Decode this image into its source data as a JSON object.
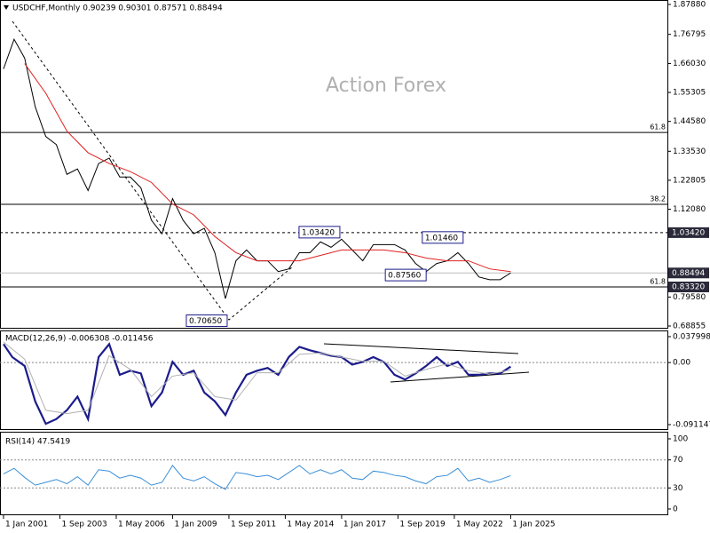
{
  "chart_data": [
    {
      "type": "line",
      "title": "USDCHF,Monthly  0.90239 0.90301 0.87571 0.88494",
      "watermark": "Action Forex",
      "xlim": [
        "2000-11",
        "2032-06"
      ],
      "xticks": [
        {
          "value": "2001-01",
          "label": "1 Jan 2001"
        },
        {
          "value": "2003-09",
          "label": "1 Sep 2003"
        },
        {
          "value": "2006-05",
          "label": "1 May 2006"
        },
        {
          "value": "2009-01",
          "label": "1 Jan 2009"
        },
        {
          "value": "2011-09",
          "label": "1 Sep 2011"
        },
        {
          "value": "2014-05",
          "label": "1 May 2014"
        },
        {
          "value": "2017-01",
          "label": "1 Jan 2017"
        },
        {
          "value": "2019-09",
          "label": "1 Sep 2019"
        },
        {
          "value": "2022-05",
          "label": "1 May 2022"
        },
        {
          "value": "2025-01",
          "label": "1 Jan 2025"
        }
      ],
      "ylim": [
        0.6787,
        1.8952
      ],
      "yticks": [
        {
          "value": 1.8788,
          "label": "1.87880"
        },
        {
          "value": 1.76795,
          "label": "1.76795"
        },
        {
          "value": 1.6603,
          "label": "1.66030"
        },
        {
          "value": 1.55305,
          "label": "1.55305"
        },
        {
          "value": 1.4458,
          "label": "1.44580"
        },
        {
          "value": 1.3353,
          "label": "1.33530"
        },
        {
          "value": 1.22805,
          "label": "1.22805"
        },
        {
          "value": 1.1208,
          "label": "1.12080"
        },
        {
          "value": 0.7958,
          "label": "0.79580"
        },
        {
          "value": 0.68855,
          "label": "0.68855"
        }
      ],
      "series": [
        {
          "name": "USDCHF",
          "color": "#000000",
          "x": [
            "2001-01",
            "2001-07",
            "2002-01",
            "2002-07",
            "2003-01",
            "2003-07",
            "2004-01",
            "2004-07",
            "2005-01",
            "2005-07",
            "2006-01",
            "2006-07",
            "2007-01",
            "2007-07",
            "2008-01",
            "2008-07",
            "2009-01",
            "2009-07",
            "2010-01",
            "2010-07",
            "2011-01",
            "2011-07",
            "2012-01",
            "2012-07",
            "2013-01",
            "2013-07",
            "2014-01",
            "2014-07",
            "2015-01",
            "2015-07",
            "2016-01",
            "2016-07",
            "2017-01",
            "2017-07",
            "2018-01",
            "2018-07",
            "2019-01",
            "2019-07",
            "2020-01",
            "2020-07",
            "2021-01",
            "2021-07",
            "2022-01",
            "2022-07",
            "2023-01",
            "2023-07",
            "2024-01",
            "2024-07",
            "2025-01"
          ],
          "values": [
            1.64,
            1.75,
            1.68,
            1.5,
            1.39,
            1.36,
            1.25,
            1.27,
            1.19,
            1.29,
            1.31,
            1.24,
            1.24,
            1.2,
            1.08,
            1.03,
            1.16,
            1.08,
            1.03,
            1.05,
            0.96,
            0.79,
            0.93,
            0.97,
            0.93,
            0.93,
            0.89,
            0.9,
            0.96,
            0.96,
            1.0,
            0.98,
            1.01,
            0.97,
            0.93,
            0.99,
            0.99,
            0.99,
            0.97,
            0.92,
            0.89,
            0.92,
            0.93,
            0.96,
            0.92,
            0.87,
            0.86,
            0.86,
            0.885
          ]
        },
        {
          "name": "MA",
          "color": "#e02020",
          "x": [
            "2002-01",
            "2003-01",
            "2004-01",
            "2005-01",
            "2006-01",
            "2007-01",
            "2008-01",
            "2009-01",
            "2010-01",
            "2011-01",
            "2012-01",
            "2013-01",
            "2014-01",
            "2015-01",
            "2016-01",
            "2017-01",
            "2018-01",
            "2019-01",
            "2020-01",
            "2021-01",
            "2022-01",
            "2023-01",
            "2024-01",
            "2025-01"
          ],
          "values": [
            1.66,
            1.55,
            1.41,
            1.33,
            1.29,
            1.26,
            1.22,
            1.14,
            1.1,
            1.02,
            0.96,
            0.93,
            0.93,
            0.93,
            0.95,
            0.97,
            0.97,
            0.97,
            0.96,
            0.94,
            0.93,
            0.93,
            0.9,
            0.89
          ]
        }
      ],
      "levels": [
        {
          "value": 1.4048,
          "label": "61.8",
          "style": "solid"
        },
        {
          "value": 1.139,
          "label": "38.2",
          "style": "solid"
        },
        {
          "value": 1.0342,
          "style": "dashed"
        },
        {
          "value": 0.8332,
          "label": "61.8",
          "style": "solid"
        },
        {
          "value": 0.88494,
          "style": "faint"
        }
      ],
      "price_tags": [
        {
          "value": 1.0342,
          "label": "1.03420"
        },
        {
          "value": 0.88494,
          "label": "0.88494"
        },
        {
          "value": 0.8332,
          "label": "0.83320"
        }
      ],
      "annotations": [
        {
          "x": "2016-12",
          "value": 1.0342,
          "label": "1.03420"
        },
        {
          "x": "2011-08",
          "value": 0.7065,
          "label": "0.70650"
        },
        {
          "x": "2021-01",
          "value": 0.8756,
          "label": "0.87560"
        },
        {
          "x": "2022-10",
          "value": 1.0146,
          "label": "1.01460"
        }
      ]
    },
    {
      "type": "line",
      "title": "MACD(12,26,9) -0.006308 -0.011456",
      "ylim": [
        -0.0977,
        0.0471
      ],
      "yticks": [
        {
          "value": 0.037998,
          "label": "0.037998"
        },
        {
          "value": 0,
          "label": "0.00"
        },
        {
          "value": -0.091147,
          "label": "-0.091147"
        }
      ],
      "levels": [
        {
          "value": 0,
          "style": "dotted"
        }
      ],
      "series": [
        {
          "name": "MACD",
          "color": "#1c1c8c",
          "x": [
            "2001-01",
            "2001-06",
            "2002-01",
            "2002-07",
            "2003-01",
            "2003-07",
            "2004-01",
            "2004-07",
            "2005-01",
            "2005-07",
            "2006-01",
            "2006-07",
            "2007-01",
            "2007-07",
            "2008-01",
            "2008-07",
            "2009-01",
            "2009-07",
            "2010-01",
            "2010-07",
            "2011-01",
            "2011-07",
            "2012-01",
            "2012-07",
            "2013-01",
            "2013-07",
            "2014-01",
            "2014-07",
            "2015-01",
            "2015-07",
            "2016-01",
            "2016-07",
            "2017-01",
            "2017-07",
            "2018-01",
            "2018-07",
            "2019-01",
            "2019-07",
            "2020-01",
            "2020-07",
            "2021-01",
            "2021-07",
            "2022-01",
            "2022-07",
            "2023-01",
            "2023-07",
            "2024-01",
            "2024-07",
            "2025-01"
          ],
          "values": [
            0.027,
            0.008,
            -0.005,
            -0.057,
            -0.09,
            -0.083,
            -0.07,
            -0.05,
            -0.083,
            0.008,
            0.027,
            -0.018,
            -0.012,
            -0.016,
            -0.064,
            -0.044,
            0.001,
            -0.018,
            -0.012,
            -0.044,
            -0.057,
            -0.077,
            -0.044,
            -0.018,
            -0.012,
            -0.008,
            -0.018,
            0.008,
            0.023,
            0.018,
            0.014,
            0.01,
            0.008,
            -0.003,
            0.001,
            0.008,
            0.001,
            -0.018,
            -0.025,
            -0.016,
            -0.005,
            0.008,
            -0.005,
            0.001,
            -0.018,
            -0.018,
            -0.016,
            -0.016,
            -0.006
          ]
        },
        {
          "name": "Signal",
          "color": "#b0b0b0",
          "x": [
            "2001-01",
            "2002-01",
            "2003-01",
            "2004-01",
            "2005-01",
            "2006-01",
            "2007-01",
            "2008-01",
            "2009-01",
            "2010-01",
            "2011-01",
            "2012-01",
            "2013-01",
            "2014-01",
            "2015-01",
            "2016-01",
            "2017-01",
            "2018-01",
            "2019-01",
            "2020-01",
            "2021-01",
            "2022-01",
            "2023-01",
            "2024-01",
            "2025-01"
          ],
          "values": [
            0.03,
            0.005,
            -0.07,
            -0.075,
            -0.07,
            0.01,
            -0.01,
            -0.05,
            -0.02,
            -0.015,
            -0.05,
            -0.055,
            -0.015,
            -0.015,
            0.012,
            0.014,
            0.008,
            0.002,
            0.002,
            -0.02,
            -0.01,
            -0.002,
            -0.012,
            -0.017,
            -0.011
          ]
        }
      ]
    },
    {
      "type": "line",
      "title": "RSI(14) 47.5419",
      "ylim": [
        -8.9,
        107.6
      ],
      "yticks": [
        100,
        70,
        30,
        0
      ],
      "levels": [
        {
          "value": 70,
          "style": "dotted"
        },
        {
          "value": 30,
          "style": "dotted"
        }
      ],
      "series": [
        {
          "name": "RSI",
          "color": "#3a8fd8",
          "x": [
            "2001-01",
            "2001-07",
            "2002-01",
            "2002-07",
            "2003-01",
            "2003-07",
            "2004-01",
            "2004-07",
            "2005-01",
            "2005-07",
            "2006-01",
            "2006-07",
            "2007-01",
            "2007-07",
            "2008-01",
            "2008-07",
            "2009-01",
            "2009-07",
            "2010-01",
            "2010-07",
            "2011-01",
            "2011-07",
            "2012-01",
            "2012-07",
            "2013-01",
            "2013-07",
            "2014-01",
            "2014-07",
            "2015-01",
            "2015-07",
            "2016-01",
            "2016-07",
            "2017-01",
            "2017-07",
            "2018-01",
            "2018-07",
            "2019-01",
            "2019-07",
            "2020-01",
            "2020-07",
            "2021-01",
            "2021-07",
            "2022-01",
            "2022-07",
            "2023-01",
            "2023-07",
            "2024-01",
            "2024-07",
            "2025-01"
          ],
          "values": [
            50,
            58,
            45,
            34,
            38,
            42,
            36,
            46,
            34,
            56,
            54,
            44,
            48,
            44,
            34,
            38,
            62,
            44,
            40,
            46,
            36,
            28,
            52,
            50,
            46,
            48,
            42,
            52,
            62,
            50,
            56,
            50,
            56,
            44,
            42,
            54,
            52,
            48,
            46,
            40,
            36,
            46,
            48,
            58,
            40,
            44,
            38,
            42,
            47.5
          ]
        }
      ]
    }
  ]
}
